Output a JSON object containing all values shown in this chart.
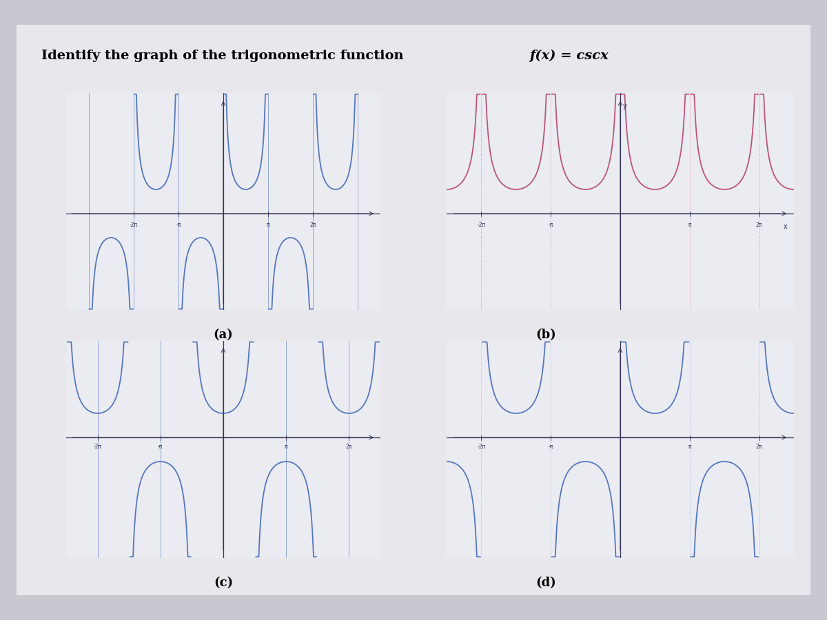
{
  "title_normal": "Identify the graph of the trigonometric function ",
  "title_italic": "f(x) = cscx",
  "bg_outer": "#c8c8d0",
  "bg_page": "#e8e8ec",
  "bg_panel": "#ebebf2",
  "labels": [
    "(a)",
    "(b)",
    "(c)",
    "(d)"
  ],
  "color_a": "#5577bb",
  "color_b": "#bb5577",
  "color_c": "#5577bb",
  "color_d": "#5577bb",
  "asym_color_a": "#5577bb",
  "asym_color_b": "#cc6688",
  "asym_color_c": "#5577bb",
  "asym_color_d": "#5577bb",
  "axis_color": "#333355"
}
